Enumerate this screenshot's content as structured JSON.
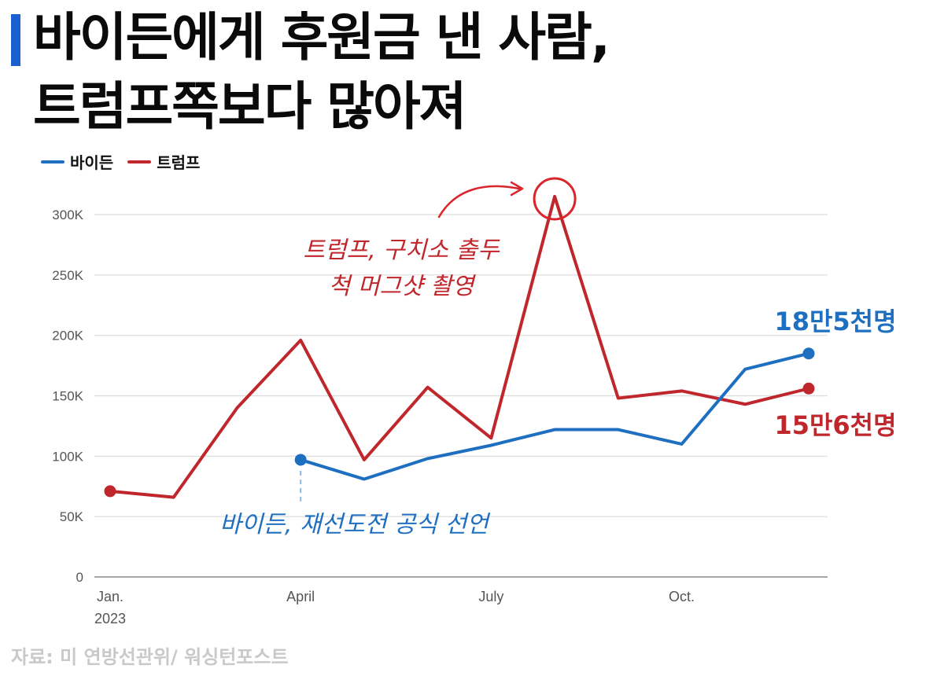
{
  "title": {
    "line1": "바이든에게 후원금 낸 사람,",
    "line2": "트럼프쪽보다 많아져"
  },
  "legend": [
    {
      "label": "바이든",
      "color": "#1f6fc0"
    },
    {
      "label": "트럼프",
      "color": "#c0272d"
    }
  ],
  "source": "자료: 미 연방선관위/ 워싱턴포스트",
  "chart_data": {
    "type": "line",
    "x": [
      "2023-01",
      "2023-02",
      "2023-03",
      "2023-04",
      "2023-05",
      "2023-06",
      "2023-07",
      "2023-08",
      "2023-09",
      "2023-10",
      "2023-11",
      "2023-12"
    ],
    "series": [
      {
        "name": "트럼프",
        "color": "#c0272d",
        "values": [
          71000,
          66000,
          140000,
          196000,
          97000,
          157000,
          115000,
          315000,
          148000,
          154000,
          143000,
          156000
        ]
      },
      {
        "name": "바이든",
        "color": "#1f6fc0",
        "values": [
          null,
          null,
          null,
          97000,
          81000,
          98000,
          109000,
          122000,
          122000,
          110000,
          172000,
          185000
        ]
      }
    ],
    "ylim": [
      0,
      300000
    ],
    "yticks": [
      0,
      50000,
      100000,
      150000,
      200000,
      250000,
      300000
    ],
    "ytick_labels": [
      "0",
      "50K",
      "100K",
      "150K",
      "200K",
      "250K",
      "300K"
    ],
    "xtick_labels": [
      {
        "at": "2023-01",
        "lines": [
          "Jan.",
          "2023"
        ]
      },
      {
        "at": "2023-04",
        "lines": [
          "April"
        ]
      },
      {
        "at": "2023-07",
        "lines": [
          "July"
        ]
      },
      {
        "at": "2023-10",
        "lines": [
          "Oct."
        ]
      }
    ],
    "grid": true,
    "legend_position": "top-left",
    "annotations": {
      "trump_peak": [
        "트럼프, 구치소 출두",
        "척 머그샷 촬영"
      ],
      "biden_start": "바이든, 재선도전 공식 선언",
      "biden_end": "18만5천명",
      "trump_end": "15만6천명"
    }
  }
}
